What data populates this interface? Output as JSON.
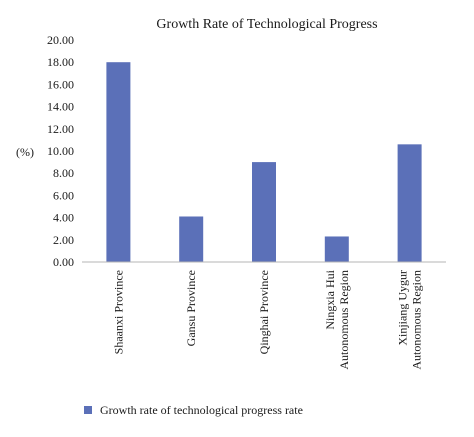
{
  "chart_data": {
    "type": "bar",
    "title": "Growth Rate of Technological Progress",
    "ylabel": "(%)",
    "xlabel": "",
    "ylim": [
      0,
      20
    ],
    "yticks": [
      "0.00",
      "2.00",
      "4.00",
      "6.00",
      "8.00",
      "10.00",
      "12.00",
      "14.00",
      "16.00",
      "18.00",
      "20.00"
    ],
    "categories": [
      [
        "Shaanxi Province"
      ],
      [
        "Gansu Province"
      ],
      [
        "Qinghai Province"
      ],
      [
        "Ningxia Hui",
        "Autonomous Region"
      ],
      [
        "Xinjiang Uygur",
        "Autonomous Region"
      ]
    ],
    "series": [
      {
        "name": "Growth rate of technological progress rate",
        "values": [
          18.0,
          4.1,
          9.0,
          2.3,
          10.6
        ],
        "color": "#5b70b8"
      }
    ],
    "grid": false,
    "legend": "bottom"
  }
}
